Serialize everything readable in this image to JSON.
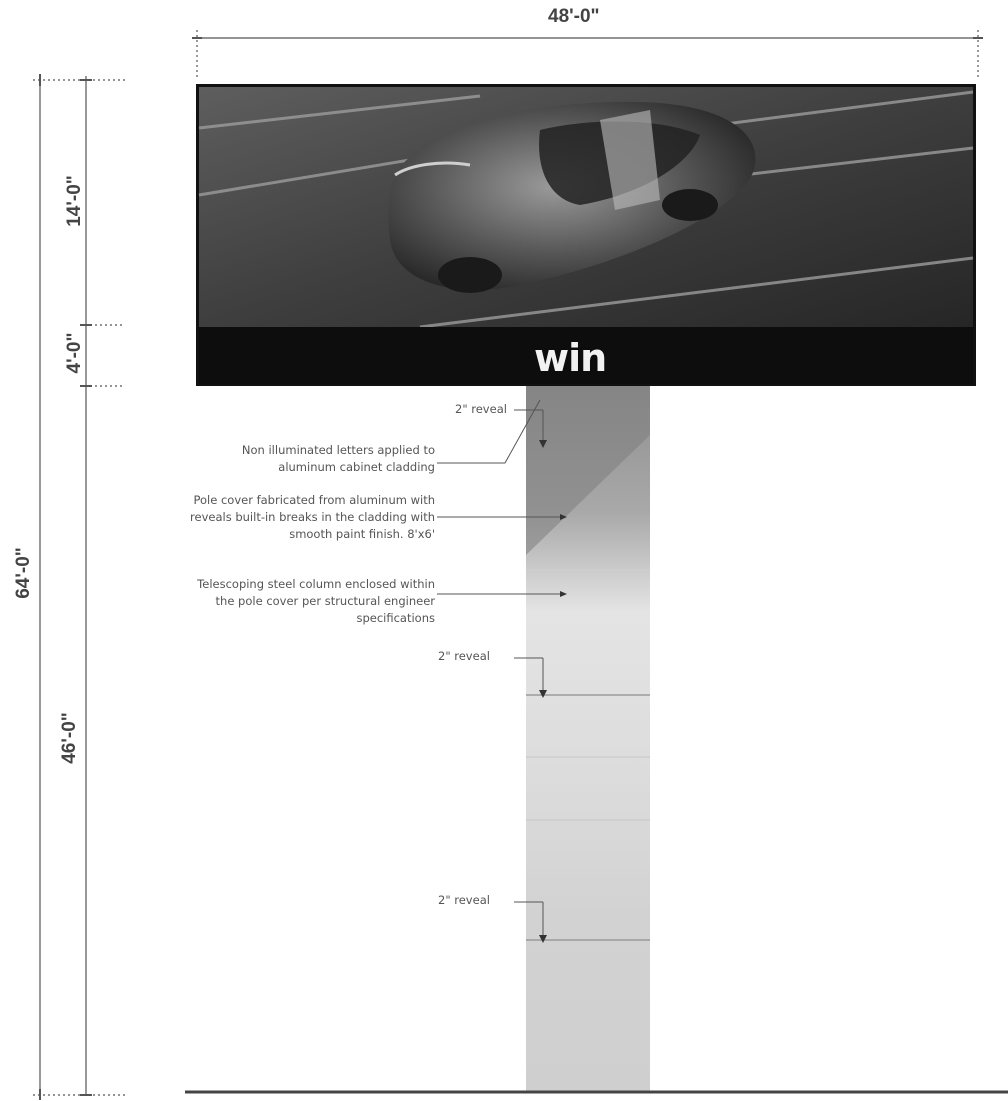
{
  "dimensions": {
    "width_top": "48'-0\"",
    "sign_face_height": "14'-0\"",
    "lower_band_height": "4'-0\"",
    "overall_height": "64'-0\"",
    "pole_height": "46'-0\""
  },
  "sign": {
    "logo_text": "win"
  },
  "callouts": {
    "reveal_1": "2\" reveal",
    "reveal_2": "2\" reveal",
    "reveal_3": "2\" reveal",
    "note_letters_line1": "Non illuminated letters applied to",
    "note_letters_line2": "aluminum cabinet cladding",
    "note_pole_line1": "Pole cover fabricated from aluminum with",
    "note_pole_line2": "reveals built-in breaks in the cladding with",
    "note_pole_line3": "smooth paint finish. 8'x6'",
    "note_column_line1": "Telescoping steel column enclosed within",
    "note_column_line2": "the pole cover per structural engineer",
    "note_column_line3": "specifications"
  },
  "colors": {
    "sign_band": "#0d0d0d",
    "pole_light": "#e6e6e6",
    "pole_dark": "#8c8c8c",
    "dimension_line": "#555555"
  }
}
